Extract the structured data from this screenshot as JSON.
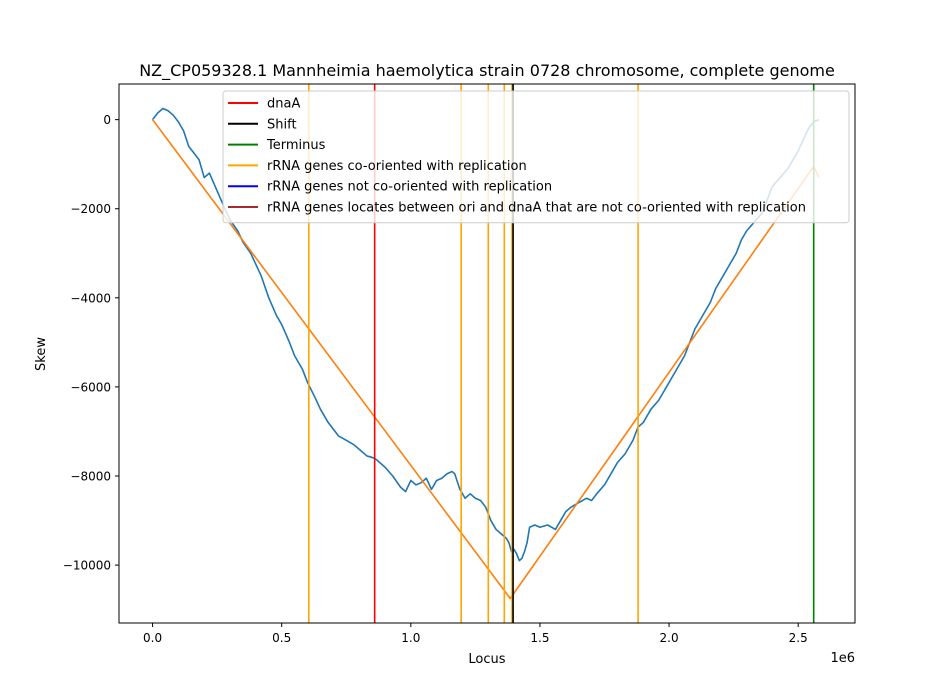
{
  "chart_data": {
    "type": "line",
    "title": "NZ_CP059328.1 Mannheimia haemolytica strain 0728 chromosome, complete genome",
    "xlabel": "Locus",
    "ylabel": "Skew",
    "x_scale_label": "1e6",
    "xlim": [
      -0.13,
      2.72
    ],
    "ylim": [
      -11300,
      800
    ],
    "xticks": [
      0.0,
      0.5,
      1.0,
      1.5,
      2.0,
      2.5
    ],
    "xtick_labels": [
      "0.0",
      "0.5",
      "1.0",
      "1.5",
      "2.0",
      "2.5"
    ],
    "yticks": [
      0,
      -2000,
      -4000,
      -6000,
      -8000,
      -10000
    ],
    "ytick_labels": [
      "0",
      "−2000",
      "−4000",
      "−6000",
      "−8000",
      "−10000"
    ],
    "grid": false,
    "legend_position": "top-right",
    "skew_series": {
      "color": "#1f77b4",
      "x": [
        0.0,
        0.02,
        0.04,
        0.06,
        0.08,
        0.1,
        0.12,
        0.14,
        0.16,
        0.18,
        0.2,
        0.22,
        0.25,
        0.28,
        0.3,
        0.33,
        0.35,
        0.38,
        0.42,
        0.45,
        0.48,
        0.5,
        0.53,
        0.55,
        0.58,
        0.6,
        0.63,
        0.65,
        0.68,
        0.7,
        0.72,
        0.75,
        0.78,
        0.8,
        0.83,
        0.86,
        0.88,
        0.9,
        0.93,
        0.96,
        0.98,
        1.0,
        1.02,
        1.04,
        1.06,
        1.08,
        1.1,
        1.12,
        1.14,
        1.16,
        1.17,
        1.19,
        1.21,
        1.23,
        1.25,
        1.27,
        1.29,
        1.31,
        1.33,
        1.35,
        1.37,
        1.38,
        1.39,
        1.4,
        1.41,
        1.42,
        1.43,
        1.44,
        1.45,
        1.46,
        1.48,
        1.5,
        1.53,
        1.56,
        1.58,
        1.6,
        1.62,
        1.65,
        1.68,
        1.7,
        1.72,
        1.75,
        1.78,
        1.8,
        1.83,
        1.86,
        1.88,
        1.9,
        1.93,
        1.96,
        1.98,
        2.0,
        2.03,
        2.06,
        2.08,
        2.1,
        2.13,
        2.16,
        2.18,
        2.2,
        2.23,
        2.26,
        2.28,
        2.3,
        2.33,
        2.36,
        2.38,
        2.4,
        2.43,
        2.46,
        2.48,
        2.5,
        2.52,
        2.54,
        2.56,
        2.58
      ],
      "y": [
        0,
        150,
        250,
        200,
        100,
        -50,
        -250,
        -600,
        -750,
        -900,
        -1300,
        -1200,
        -1600,
        -2000,
        -2250,
        -2500,
        -2750,
        -3000,
        -3500,
        -4000,
        -4400,
        -4600,
        -5000,
        -5300,
        -5600,
        -5900,
        -6250,
        -6500,
        -6800,
        -6950,
        -7100,
        -7200,
        -7300,
        -7400,
        -7550,
        -7600,
        -7700,
        -7800,
        -8000,
        -8250,
        -8350,
        -8100,
        -8200,
        -8150,
        -8050,
        -8300,
        -8100,
        -8050,
        -7950,
        -7900,
        -7950,
        -8300,
        -8500,
        -8400,
        -8500,
        -8550,
        -8700,
        -9000,
        -9200,
        -9300,
        -9400,
        -9500,
        -9700,
        -9650,
        -9750,
        -9900,
        -9850,
        -9700,
        -9500,
        -9150,
        -9100,
        -9150,
        -9100,
        -9200,
        -9000,
        -8800,
        -8700,
        -8600,
        -8500,
        -8550,
        -8400,
        -8200,
        -7900,
        -7700,
        -7500,
        -7200,
        -6900,
        -6800,
        -6500,
        -6300,
        -6100,
        -5900,
        -5600,
        -5300,
        -5000,
        -4700,
        -4400,
        -4100,
        -3800,
        -3600,
        -3300,
        -3000,
        -2700,
        -2500,
        -2300,
        -2100,
        -1800,
        -1500,
        -1300,
        -1100,
        -900,
        -700,
        -450,
        -200,
        -50,
        0
      ]
    },
    "fit_series": {
      "color": "#ff7f0e",
      "x": [
        0.0,
        1.385,
        2.56,
        2.58
      ],
      "y": [
        0,
        -10750,
        -1050,
        -1300
      ]
    },
    "vertical_lines": [
      {
        "x": 0.605,
        "color": "#ffa500",
        "legend": "rRNA genes co-oriented with replication"
      },
      {
        "x": 0.86,
        "color": "#ff0000",
        "legend": "dnaA"
      },
      {
        "x": 1.195,
        "color": "#ffa500",
        "legend": "rRNA genes co-oriented with replication"
      },
      {
        "x": 1.3,
        "color": "#ffa500",
        "legend": "rRNA genes co-oriented with replication"
      },
      {
        "x": 1.362,
        "color": "#ffa500",
        "legend": "rRNA genes co-oriented with replication"
      },
      {
        "x": 1.392,
        "color": "#ffa500",
        "legend": "rRNA genes co-oriented with replication"
      },
      {
        "x": 1.396,
        "color": "#000000",
        "legend": "Shift"
      },
      {
        "x": 1.88,
        "color": "#ffa500",
        "legend": "rRNA genes co-oriented with replication"
      },
      {
        "x": 2.56,
        "color": "#008000",
        "legend": "Terminus"
      }
    ],
    "legend": [
      {
        "label": "dnaA",
        "color": "#ff0000"
      },
      {
        "label": "Shift",
        "color": "#000000"
      },
      {
        "label": "Terminus",
        "color": "#008000"
      },
      {
        "label": "rRNA genes co-oriented with replication",
        "color": "#ffa500"
      },
      {
        "label": "rRNA genes not co-oriented with replication",
        "color": "#0000ff"
      },
      {
        "label": "rRNA genes locates between ori and dnaA that are not co-oriented with replication",
        "color": "#a52a2a"
      }
    ]
  }
}
